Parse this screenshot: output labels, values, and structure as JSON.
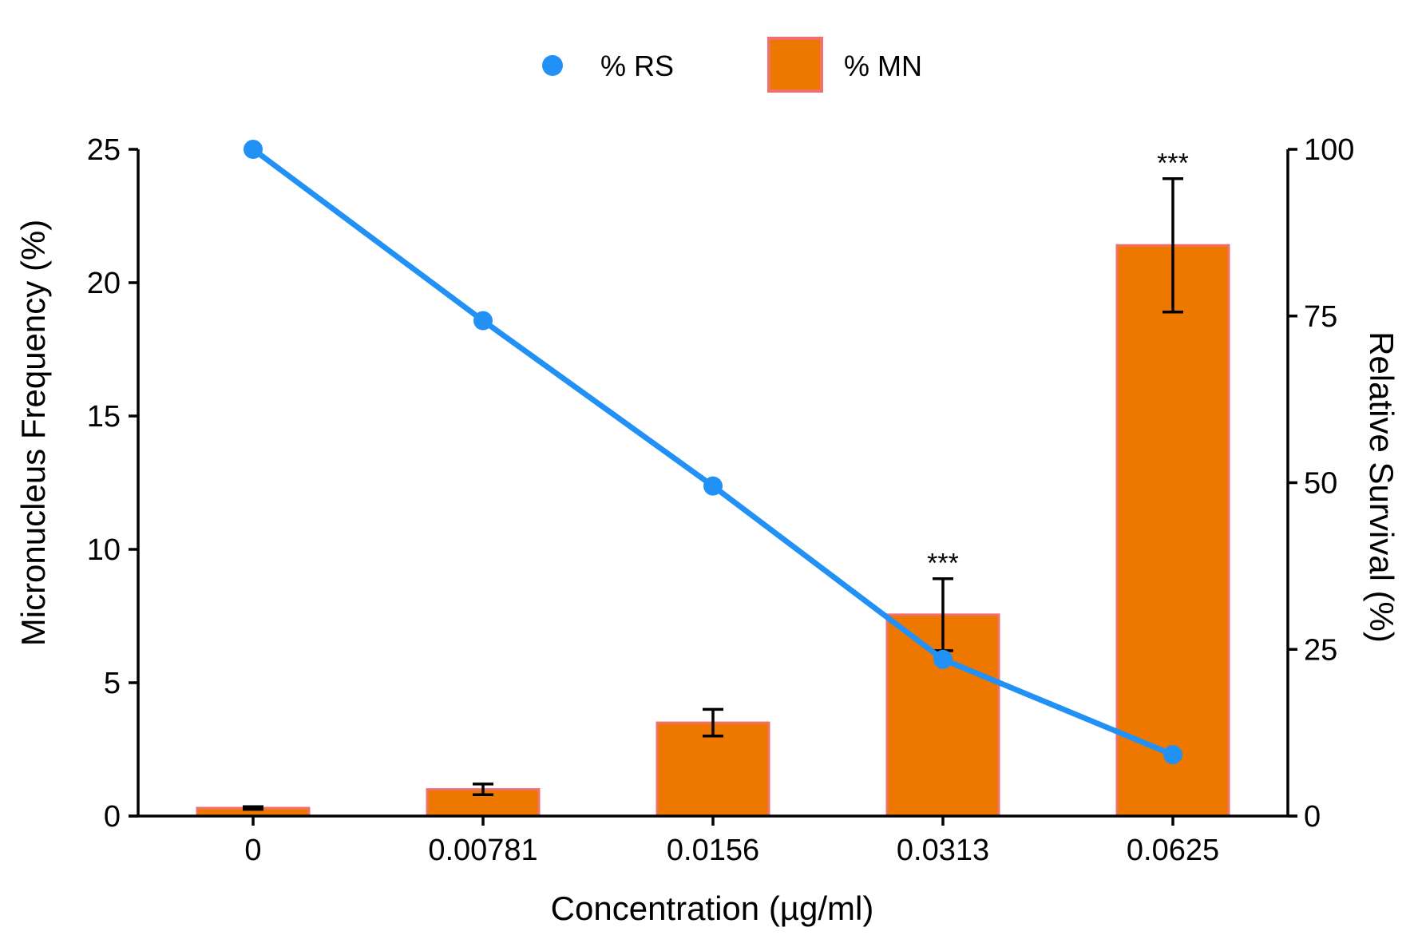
{
  "chart_data": {
    "type": "bar",
    "title": "",
    "xlabel": "Concentration (µg/ml)",
    "ylabel": "Micronucleus Frequency (%)",
    "y2label": "Relative Survival (%)",
    "categories": [
      "0",
      "0.00781",
      "0.0156",
      "0.0313",
      "0.0625"
    ],
    "ylim": [
      0,
      25
    ],
    "y2lim": [
      0,
      100
    ],
    "yticks": [
      0,
      5,
      10,
      15,
      20,
      25
    ],
    "y2ticks": [
      0,
      25,
      50,
      75,
      100
    ],
    "legend_position": "top-center",
    "grid": false,
    "series": [
      {
        "name": "% MN",
        "type": "bar",
        "axis": "left",
        "color": "#EE7700",
        "edge_color": "#F07070",
        "values": [
          0.3,
          1.0,
          3.5,
          7.55,
          21.4
        ],
        "error": [
          0.05,
          0.2,
          0.5,
          1.35,
          2.5
        ],
        "significance": [
          "",
          "",
          "",
          "***",
          "***"
        ]
      },
      {
        "name": "% RS",
        "type": "line",
        "axis": "right",
        "color": "#2291F5",
        "values": [
          100,
          74.3,
          49.5,
          23.5,
          9.2
        ]
      }
    ]
  }
}
